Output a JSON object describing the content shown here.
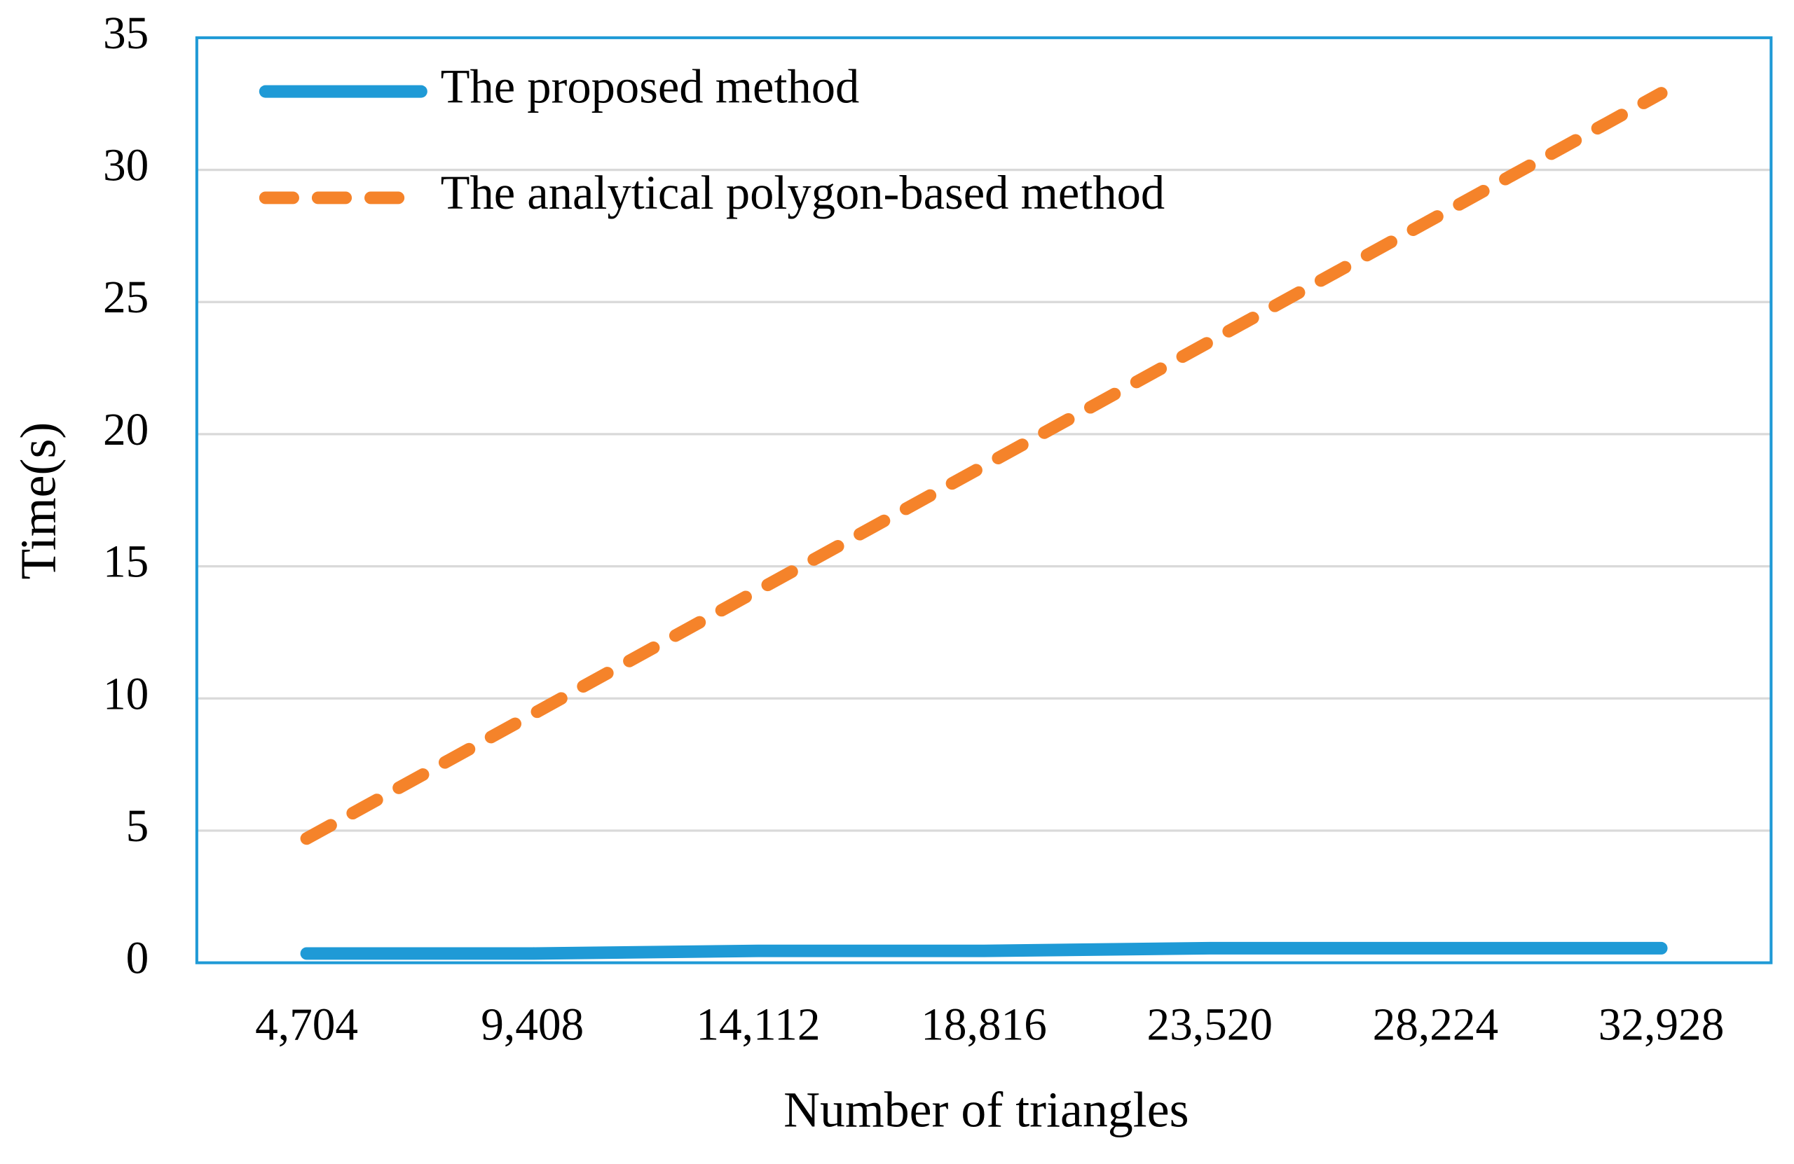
{
  "chart_data": {
    "type": "line",
    "x_label": "Number of triangles",
    "y_label": "Time(s)",
    "categories": [
      "4,704",
      "9,408",
      "14,112",
      "18,816",
      "23,520",
      "28,224",
      "32,928"
    ],
    "series": [
      {
        "name": "The proposed method",
        "color": "#1f9ad6",
        "dashed": false,
        "values": [
          0.35,
          0.35,
          0.45,
          0.45,
          0.55,
          0.55,
          0.55
        ]
      },
      {
        "name": "The analytical polygon-based method",
        "color": "#f5832a",
        "dashed": true,
        "values": [
          4.7,
          9.4,
          14.1,
          18.8,
          23.5,
          28.2,
          32.9
        ]
      }
    ],
    "ylim": [
      0,
      35
    ],
    "yticks": [
      0,
      5,
      10,
      15,
      20,
      25,
      30,
      35
    ],
    "grid": true,
    "legend": "top-left"
  }
}
